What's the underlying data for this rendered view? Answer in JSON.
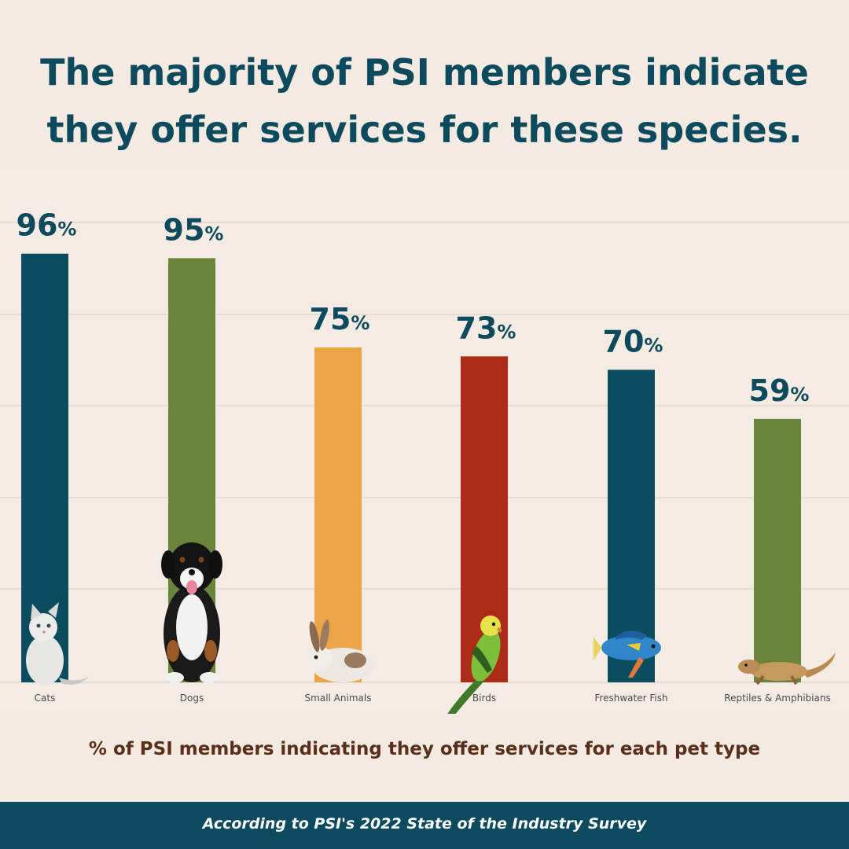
{
  "headline": {
    "line1": "The majority of PSI members indicate",
    "line2": "they offer services for these species."
  },
  "caption": "% of PSI members indicating they offer services for each pet type",
  "footer": "According to PSI's 2022 State of the Industry Survey",
  "chart_data": {
    "type": "bar",
    "categories": [
      "Cats",
      "Dogs",
      "Small Animals",
      "Birds",
      "Freshwater Fish",
      "Reptiles & Amphibians"
    ],
    "values": [
      96,
      95,
      75,
      73,
      70,
      59
    ],
    "data_labels": [
      "96%",
      "95%",
      "75%",
      "73%",
      "70%",
      "59%"
    ],
    "bar_colors": [
      "#0b4c5f",
      "#6b843b",
      "#eba446",
      "#ad2c18",
      "#0b4c5f",
      "#6b843b"
    ],
    "grid": true,
    "ylim": [
      0,
      100
    ],
    "icons": [
      "cat-icon",
      "dog-icon",
      "rabbit-icon",
      "parakeet-icon",
      "fish-icon",
      "lizard-icon"
    ],
    "label_color": "#0e4a5e"
  }
}
